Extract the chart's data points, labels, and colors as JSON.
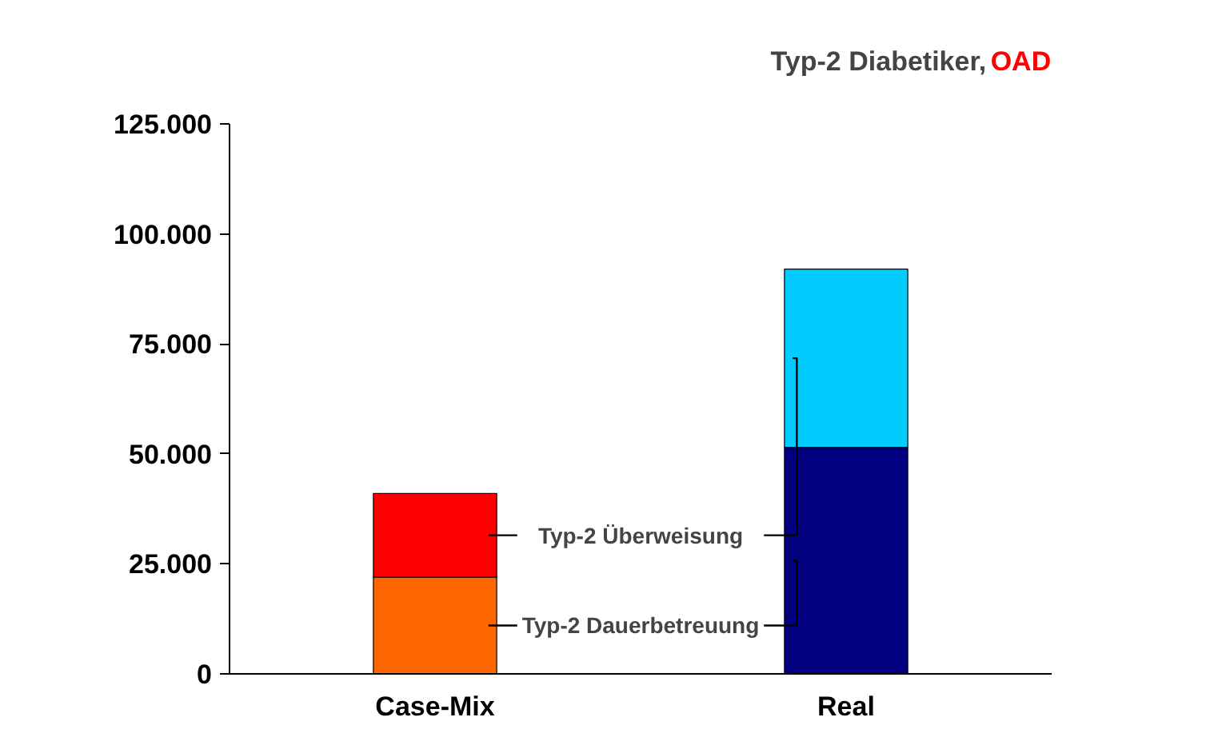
{
  "chart_data": {
    "type": "bar",
    "stacked": true,
    "title": "Typ-2 Diabetiker,",
    "subtitle": "OAD",
    "categories": [
      "Case-Mix",
      "Real"
    ],
    "series": [
      {
        "name": "Typ-2 Dauerbetreuung",
        "colors": [
          "#ff6600",
          "#000080"
        ],
        "values": [
          22000,
          51500
        ]
      },
      {
        "name": "Typ-2 Überweisung",
        "colors": [
          "#ff0000",
          "#00ccff"
        ],
        "values": [
          19000,
          40500
        ]
      }
    ],
    "ylim": [
      0,
      125000
    ],
    "yticks": [
      {
        "value": 0,
        "label": "0"
      },
      {
        "value": 25000,
        "label": "25.000"
      },
      {
        "value": 50000,
        "label": "50.000"
      },
      {
        "value": 75000,
        "label": "75.000"
      },
      {
        "value": 100000,
        "label": "100.000"
      },
      {
        "value": 125000,
        "label": "125.000"
      }
    ],
    "grid": false,
    "legend": "bottom"
  }
}
